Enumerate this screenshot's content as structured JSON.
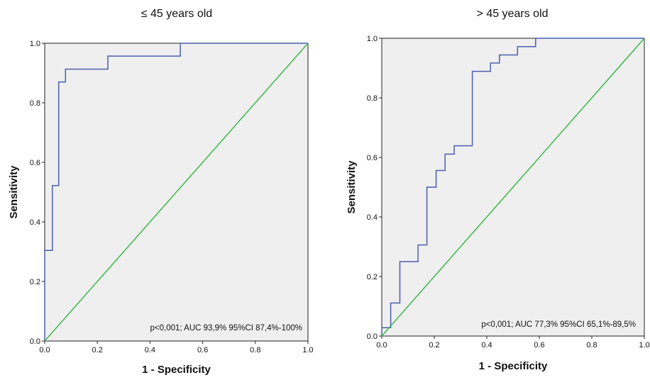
{
  "chart_data": [
    {
      "type": "line",
      "title": "≤ 45 years old",
      "xlabel": "1 - Specificity",
      "ylabel": "Sensitivity",
      "xlim": [
        0,
        1
      ],
      "ylim": [
        0,
        1
      ],
      "x_ticks": [
        "0.0",
        "0.2",
        "0.4",
        "0.6",
        "0.8",
        "1.0"
      ],
      "y_ticks": [
        "0.0",
        "0.2",
        "0.4",
        "0.6",
        "0.8",
        "1.0"
      ],
      "annotation": "p<0,001; AUC 93,9% 95%CI 87,4%-100%",
      "series": [
        {
          "color": "#4a5fb0",
          "points": [
            [
              0,
              0
            ],
            [
              0,
              0.304
            ],
            [
              0.029,
              0.304
            ],
            [
              0.029,
              0.522
            ],
            [
              0.053,
              0.522
            ],
            [
              0.053,
              0.87
            ],
            [
              0.079,
              0.87
            ],
            [
              0.079,
              0.913
            ],
            [
              0.24,
              0.913
            ],
            [
              0.24,
              0.957
            ],
            [
              0.515,
              0.957
            ],
            [
              0.515,
              1
            ],
            [
              1,
              1
            ]
          ]
        },
        {
          "color": "#3cb84a",
          "points": [
            [
              0,
              0
            ],
            [
              1,
              1
            ]
          ]
        }
      ]
    },
    {
      "type": "line",
      "title": "> 45 years old",
      "xlabel": "1 - Specificity",
      "ylabel": "Sensitivity",
      "xlim": [
        0,
        1
      ],
      "ylim": [
        0,
        1
      ],
      "x_ticks": [
        "0.0",
        "0.2",
        "0.4",
        "0.6",
        "0.8",
        "1.0"
      ],
      "y_ticks": [
        "0.0",
        "0.2",
        "0.4",
        "0.6",
        "0.8",
        "1.0"
      ],
      "annotation": "p<0,001; AUC 77,3% 95%CI 65,1%-89,5%",
      "series": [
        {
          "color": "#4a5fb0",
          "points": [
            [
              0,
              0
            ],
            [
              0,
              0.028
            ],
            [
              0.034,
              0.028
            ],
            [
              0.034,
              0.111
            ],
            [
              0.069,
              0.111
            ],
            [
              0.069,
              0.25
            ],
            [
              0.138,
              0.25
            ],
            [
              0.138,
              0.306
            ],
            [
              0.172,
              0.306
            ],
            [
              0.172,
              0.5
            ],
            [
              0.207,
              0.5
            ],
            [
              0.207,
              0.556
            ],
            [
              0.241,
              0.556
            ],
            [
              0.241,
              0.611
            ],
            [
              0.276,
              0.611
            ],
            [
              0.276,
              0.639
            ],
            [
              0.345,
              0.639
            ],
            [
              0.345,
              0.889
            ],
            [
              0.414,
              0.889
            ],
            [
              0.414,
              0.917
            ],
            [
              0.448,
              0.917
            ],
            [
              0.448,
              0.944
            ],
            [
              0.517,
              0.944
            ],
            [
              0.517,
              0.972
            ],
            [
              0.586,
              0.972
            ],
            [
              0.586,
              1
            ],
            [
              1,
              1
            ]
          ]
        },
        {
          "color": "#3cb84a",
          "points": [
            [
              0,
              0
            ],
            [
              1,
              1
            ]
          ]
        }
      ]
    }
  ]
}
